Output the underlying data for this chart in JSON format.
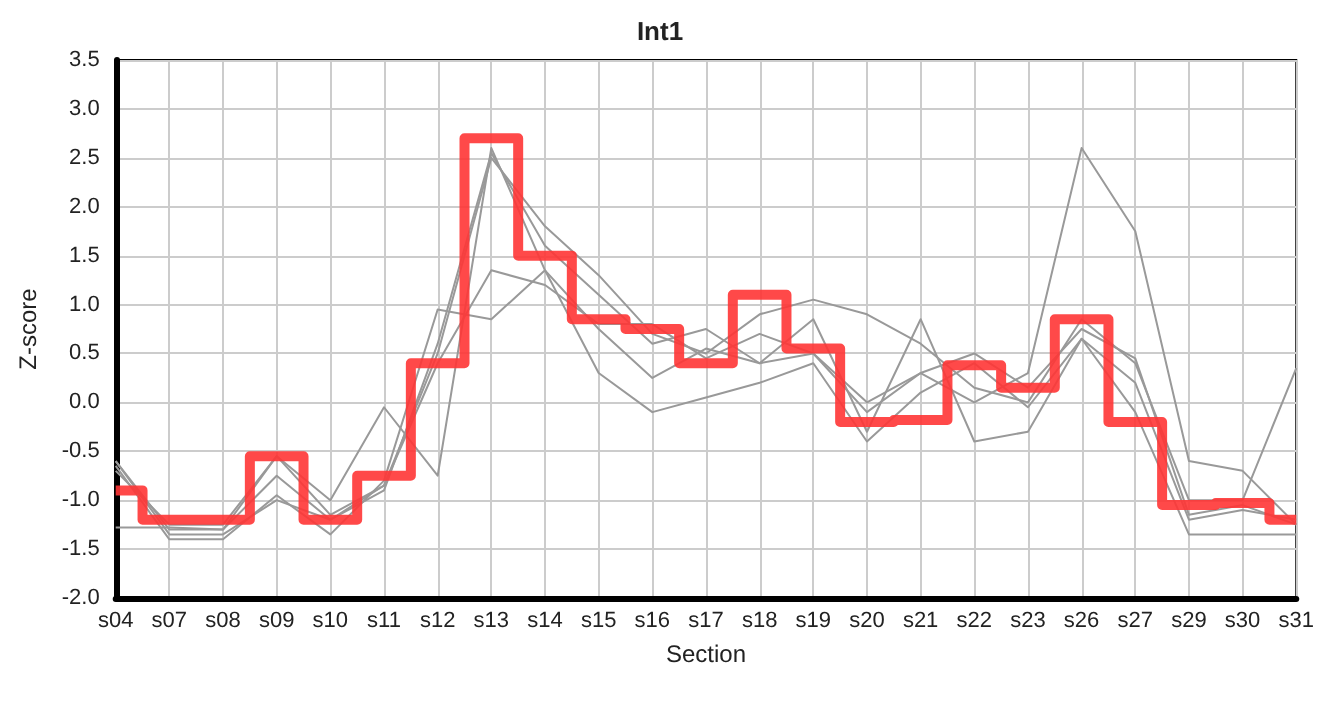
{
  "chart_data": {
    "type": "line",
    "title": "Int1",
    "xlabel": "Section",
    "ylabel": "Z-score",
    "categories": [
      "s04",
      "s07",
      "s08",
      "s09",
      "s10",
      "s11",
      "s12",
      "s13",
      "s14",
      "s15",
      "s16",
      "s17",
      "s18",
      "s19",
      "s20",
      "s21",
      "s22",
      "s23",
      "s26",
      "s27",
      "s29",
      "s30",
      "s31"
    ],
    "ylim": [
      -2,
      3.5
    ],
    "yticks": [
      {
        "value": -2,
        "label": "-2.0"
      },
      -1.5,
      {
        "value": -1,
        "label": "-1.0"
      },
      -0.5,
      {
        "value": 0,
        "label": "0.0"
      },
      0.5,
      {
        "value": 1,
        "label": "1.0"
      },
      1.5,
      {
        "value": 2,
        "label": "2.0"
      },
      2.5,
      {
        "value": 3,
        "label": "3.0"
      },
      3.5
    ],
    "grid": true,
    "marker": "none",
    "series": [
      {
        "color": "#999999",
        "values": [
          -0.6,
          -1.3,
          -1.3,
          -0.75,
          -1.2,
          -0.9,
          0.6,
          2.55,
          1.6,
          1.1,
          0.6,
          0.75,
          0.4,
          0.5,
          -0.1,
          0.3,
          0.0,
          0.3,
          2.6,
          1.75,
          -0.6,
          -0.7,
          -1.25
        ]
      },
      {
        "color": "#999999",
        "values": [
          -0.7,
          -1.25,
          -1.25,
          -0.55,
          -1.15,
          -0.85,
          0.5,
          2.5,
          1.8,
          1.3,
          0.7,
          0.5,
          0.9,
          1.05,
          0.9,
          0.6,
          0.15,
          0.0,
          0.85,
          0.4,
          -1.0,
          -1.0,
          0.35
        ]
      },
      {
        "color": "#999999",
        "values": [
          -1.28,
          -1.28,
          -1.3,
          -0.55,
          -1.0,
          -0.05,
          -0.75,
          2.6,
          1.35,
          0.75,
          0.25,
          0.55,
          0.4,
          0.85,
          -0.3,
          0.85,
          -0.4,
          -0.3,
          0.65,
          -0.1,
          -1.35,
          -1.35,
          -1.35
        ]
      },
      {
        "color": "#999999",
        "values": [
          -0.65,
          -1.4,
          -1.4,
          -0.95,
          -1.35,
          -0.8,
          0.95,
          0.85,
          1.35,
          0.3,
          -0.1,
          0.05,
          0.2,
          0.4,
          -0.4,
          0.1,
          0.4,
          -0.05,
          0.65,
          0.2,
          -1.2,
          -1.1,
          -1.2
        ]
      },
      {
        "color": "#999999",
        "values": [
          -0.6,
          -1.35,
          -1.35,
          -1.0,
          -1.2,
          -0.85,
          0.4,
          1.35,
          1.2,
          0.8,
          0.8,
          0.45,
          0.7,
          0.5,
          0.0,
          0.3,
          0.5,
          0.15,
          0.75,
          0.45,
          -1.15,
          -1.05,
          -1.25
        ]
      },
      {
        "type": "step",
        "color": "#ff3535",
        "values": [
          -0.9,
          -1.2,
          -1.2,
          -0.55,
          -1.2,
          -0.75,
          0.4,
          2.7,
          1.5,
          0.85,
          0.75,
          0.4,
          1.1,
          0.55,
          -0.2,
          -0.18,
          0.38,
          0.15,
          0.85,
          -0.2,
          -1.05,
          -1.03,
          -1.2
        ]
      }
    ]
  }
}
